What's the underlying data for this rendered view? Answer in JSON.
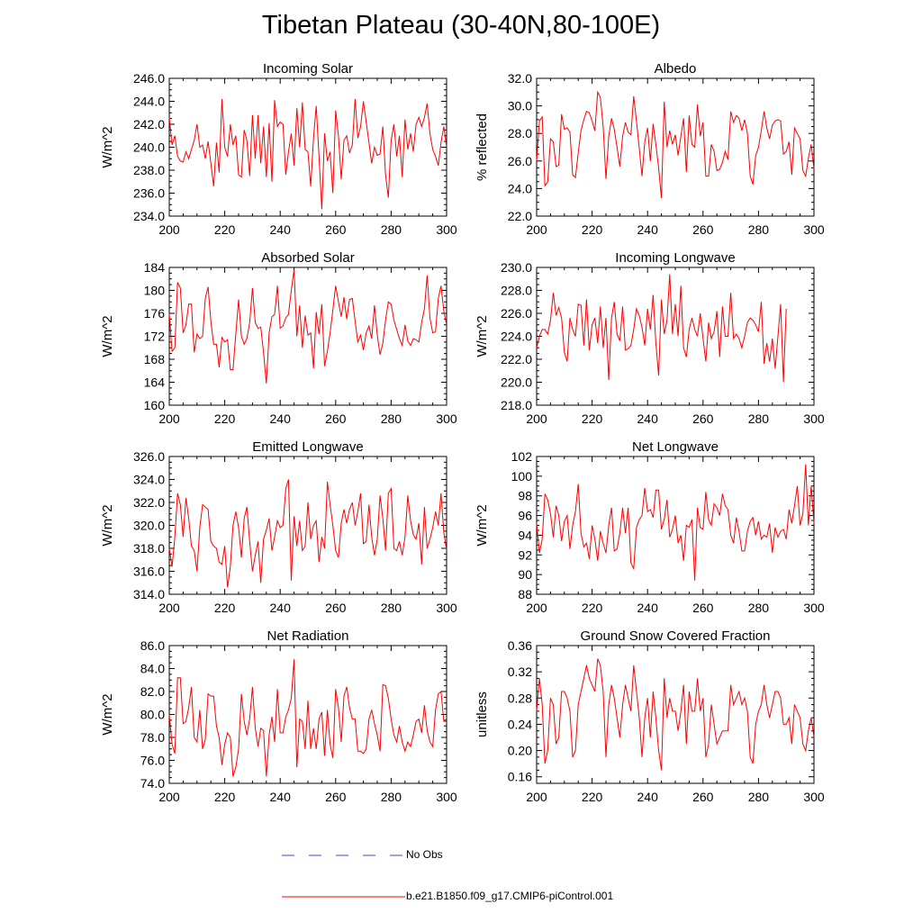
{
  "title": "Tibetan Plateau (30-40N,80-100E)",
  "colors": {
    "model": "#ff0000",
    "obs": "#3b4bc8",
    "axis": "#000000"
  },
  "legend": {
    "obs_label": "No Obs",
    "model_label": "b.e21.B1850.f09_g17.CMIP6-piControl.001"
  },
  "chart_data": [
    {
      "type": "line",
      "title": "Incoming Solar",
      "ylabel": "W/m^2",
      "xlim": [
        200,
        300
      ],
      "ylim": [
        234,
        246
      ],
      "xticks": [
        "200",
        "220",
        "240",
        "260",
        "280",
        "300"
      ],
      "yticks": [
        "234.0",
        "236.0",
        "238.0",
        "240.0",
        "242.0",
        "244.0",
        "246.0"
      ],
      "series": [
        {
          "name": "b.e21.B1850.f09_g17.CMIP6-piControl.001",
          "x_start": 200,
          "values": [
            242.6,
            240.2,
            241.0,
            239.2,
            238.8,
            238.7,
            239.6,
            239.0,
            239.8,
            240.6,
            242.0,
            240.0,
            240.2,
            239.0,
            240.5,
            238.6,
            236.6,
            240.4,
            237.8,
            244.2,
            240.0,
            239.2,
            242.0,
            240.2,
            241.0,
            237.6,
            237.4,
            241.5,
            240.6,
            237.5,
            242.8,
            239.0,
            242.8,
            238.6,
            241.8,
            237.4,
            242.1,
            237.0,
            244.1,
            241.8,
            242.2,
            242.0,
            237.6,
            239.6,
            241.2,
            238.4,
            243.4,
            240.0,
            243.9,
            239.8,
            239.6,
            236.6,
            240.8,
            243.6,
            239.2,
            234.6,
            241.2,
            238.8,
            239.6,
            236.0,
            243.2,
            241.0,
            237.2,
            240.6,
            241.0,
            239.5,
            240.2,
            244.2,
            240.8,
            241.8,
            244.0,
            242.2,
            240.4,
            238.6,
            240.0,
            239.3,
            239.4,
            241.8,
            237.6,
            235.6,
            240.6,
            242.0,
            239.2,
            241.0,
            237.4,
            242.4,
            239.8,
            241.2,
            239.6,
            242.0,
            242.6,
            241.8,
            242.6,
            243.8,
            241.2,
            239.8,
            239.2,
            238.4,
            240.4,
            241.8,
            240.0
          ]
        }
      ]
    },
    {
      "type": "line",
      "title": "Albedo",
      "ylabel": "% reflected",
      "xlim": [
        200,
        300
      ],
      "ylim": [
        22,
        32
      ],
      "xticks": [
        "200",
        "220",
        "240",
        "260",
        "280",
        "300"
      ],
      "yticks": [
        "22.0",
        "24.0",
        "26.0",
        "28.0",
        "30.0",
        "32.0"
      ],
      "series": [
        {
          "name": "b.e21.B1850.f09_g17.CMIP6-piControl.001",
          "x_start": 200,
          "values": [
            26.0,
            28.9,
            29.2,
            24.2,
            24.5,
            27.6,
            27.4,
            25.6,
            25.7,
            29.4,
            28.3,
            28.4,
            28.1,
            25.0,
            24.8,
            26.6,
            28.2,
            29.0,
            29.6,
            29.5,
            28.9,
            28.2,
            31.0,
            30.6,
            28.5,
            24.7,
            27.8,
            29.1,
            28.3,
            27.0,
            25.6,
            27.8,
            28.8,
            28.1,
            27.9,
            30.7,
            28.9,
            26.9,
            24.9,
            27.4,
            28.4,
            26.0,
            28.7,
            27.2,
            25.5,
            23.3,
            30.3,
            27.0,
            28.2,
            27.2,
            27.9,
            26.4,
            27.8,
            29.1,
            25.2,
            29.3,
            27.2,
            27.0,
            30.1,
            27.8,
            28.8,
            24.9,
            24.9,
            27.2,
            26.7,
            25.3,
            25.4,
            25.9,
            26.7,
            26.1,
            29.6,
            28.8,
            29.3,
            29.1,
            28.2,
            29.0,
            28.0,
            24.9,
            24.3,
            26.4,
            27.0,
            28.2,
            29.6,
            28.4,
            27.6,
            28.6,
            28.9,
            29.0,
            28.9,
            26.5,
            26.7,
            27.4,
            25.0,
            28.4,
            28.0,
            27.6,
            25.3,
            24.9,
            26.2,
            27.2,
            25.4
          ]
        }
      ]
    },
    {
      "type": "line",
      "title": "Absorbed Solar",
      "ylabel": "W/m^2",
      "xlim": [
        200,
        300
      ],
      "ylim": [
        160,
        184
      ],
      "xticks": [
        "200",
        "220",
        "240",
        "260",
        "280",
        "300"
      ],
      "yticks": [
        "160",
        "164",
        "168",
        "172",
        "176",
        "180",
        "184"
      ],
      "series": [
        {
          "name": "b.e21.B1850.f09_g17.CMIP6-piControl.001",
          "x_start": 200,
          "values": [
            176.0,
            169.4,
            170.0,
            181.4,
            180.4,
            172.6,
            174.0,
            177.6,
            177.6,
            169.2,
            172.4,
            171.6,
            172.0,
            178.6,
            180.6,
            174.6,
            170.6,
            170.6,
            166.6,
            171.8,
            171.0,
            171.4,
            166.2,
            166.2,
            172.4,
            178.4,
            172.0,
            170.6,
            171.6,
            174.4,
            180.4,
            174.4,
            173.4,
            173.6,
            169.2,
            163.8,
            172.6,
            175.4,
            175.8,
            180.8,
            173.4,
            173.8,
            175.2,
            175.8,
            180.0,
            183.6,
            172.0,
            177.4,
            170.0,
            175.6,
            172.2,
            172.6,
            166.4,
            176.2,
            172.4,
            177.6,
            166.8,
            169.4,
            172.6,
            176.6,
            180.8,
            178.0,
            175.4,
            178.8,
            175.0,
            178.4,
            178.6,
            174.6,
            171.0,
            172.2,
            169.6,
            172.6,
            173.8,
            171.6,
            177.4,
            172.2,
            168.8,
            170.8,
            174.8,
            178.0,
            177.6,
            174.8,
            173.2,
            171.6,
            170.4,
            174.0,
            171.2,
            170.4,
            171.6,
            171.4,
            171.0,
            174.4,
            176.8,
            182.6,
            175.2,
            172.6,
            172.8,
            178.6,
            180.8,
            176.4,
            174.0
          ]
        }
      ]
    },
    {
      "type": "line",
      "title": "Incoming Longwave",
      "ylabel": "W/m^2",
      "xlim": [
        200,
        300
      ],
      "ylim": [
        218,
        230
      ],
      "xticks": [
        "200",
        "220",
        "240",
        "260",
        "280",
        "300"
      ],
      "yticks": [
        "218.0",
        "220.0",
        "222.0",
        "224.0",
        "226.0",
        "228.0",
        "230.0"
      ],
      "series": [
        {
          "name": "b.e21.B1850.f09_g17.CMIP6-piControl.001",
          "x_start": 200,
          "values": [
            223.0,
            224.0,
            224.6,
            224.6,
            224.2,
            225.4,
            227.8,
            225.8,
            226.5,
            225.6,
            222.6,
            221.8,
            225.6,
            224.6,
            224.0,
            226.8,
            226.7,
            223.2,
            227.2,
            222.8,
            225.0,
            225.6,
            223.4,
            226.6,
            223.0,
            225.6,
            220.2,
            225.6,
            227.0,
            224.2,
            223.6,
            226.6,
            222.8,
            222.9,
            223.2,
            224.6,
            226.4,
            225.8,
            224.8,
            223.2,
            226.4,
            224.6,
            227.6,
            223.4,
            220.6,
            227.2,
            224.2,
            225.4,
            229.4,
            224.2,
            226.8,
            224.0,
            228.4,
            223.0,
            222.2,
            224.6,
            225.6,
            224.6,
            224.0,
            226.0,
            223.8,
            221.8,
            225.2,
            223.8,
            224.4,
            226.2,
            222.2,
            226.6,
            224.0,
            224.0,
            227.8,
            223.8,
            224.2,
            223.8,
            223.0,
            224.0,
            225.2,
            225.6,
            225.4,
            225.0,
            224.4,
            227.0,
            221.6,
            223.4,
            221.8,
            223.8,
            221.2,
            224.0,
            226.8,
            220.0,
            226.4
          ]
        }
      ]
    },
    {
      "type": "line",
      "title": "Emitted Longwave",
      "ylabel": "W/m^2",
      "xlim": [
        200,
        300
      ],
      "ylim": [
        314,
        326
      ],
      "xticks": [
        "200",
        "220",
        "240",
        "260",
        "280",
        "300"
      ],
      "yticks": [
        "314.0",
        "316.0",
        "318.0",
        "320.0",
        "322.0",
        "324.0",
        "326.0"
      ],
      "series": [
        {
          "name": "b.e21.B1850.f09_g17.CMIP6-piControl.001",
          "x_start": 200,
          "values": [
            318.0,
            316.4,
            319.0,
            322.8,
            321.8,
            319.0,
            322.4,
            320.6,
            318.2,
            317.8,
            316.0,
            319.8,
            321.8,
            321.6,
            321.4,
            318.6,
            318.2,
            318.0,
            316.8,
            316.6,
            318.2,
            314.6,
            316.4,
            320.0,
            321.2,
            319.8,
            317.2,
            320.6,
            321.6,
            318.6,
            316.0,
            317.4,
            318.6,
            315.0,
            318.8,
            319.6,
            320.6,
            317.8,
            319.0,
            320.4,
            319.8,
            320.0,
            323.2,
            324.0,
            315.2,
            320.8,
            318.2,
            320.4,
            317.8,
            318.2,
            322.0,
            318.8,
            320.0,
            320.4,
            316.8,
            319.0,
            318.0,
            323.8,
            321.8,
            320.0,
            317.8,
            317.2,
            320.2,
            321.4,
            320.2,
            321.4,
            322.0,
            320.0,
            321.2,
            322.8,
            318.4,
            318.6,
            321.8,
            319.0,
            317.4,
            318.8,
            322.6,
            320.6,
            317.8,
            322.8,
            323.2,
            318.0,
            317.8,
            318.6,
            317.4,
            319.0,
            322.6,
            320.4,
            319.2,
            318.8,
            320.2,
            316.6,
            321.6,
            318.0,
            318.8,
            319.8,
            321.2,
            320.0,
            322.8,
            319.4,
            317.8
          ]
        }
      ]
    },
    {
      "type": "line",
      "title": "Net Longwave",
      "ylabel": "W/m^2",
      "xlim": [
        200,
        300
      ],
      "ylim": [
        88,
        102
      ],
      "xticks": [
        "200",
        "220",
        "240",
        "260",
        "280",
        "300"
      ],
      "yticks": [
        "88",
        "90",
        "92",
        "94",
        "96",
        "98",
        "100",
        "102"
      ],
      "series": [
        {
          "name": "b.e21.B1850.f09_g17.CMIP6-piControl.001",
          "x_start": 200,
          "values": [
            95.2,
            92.2,
            93.6,
            98.2,
            97.6,
            96.2,
            93.8,
            97.0,
            96.0,
            93.4,
            95.4,
            96.0,
            92.6,
            95.0,
            96.4,
            99.2,
            94.2,
            92.8,
            93.2,
            91.6,
            95.0,
            93.6,
            91.4,
            94.4,
            93.2,
            92.2,
            95.0,
            96.8,
            92.4,
            92.6,
            94.2,
            96.8,
            94.2,
            96.8,
            91.2,
            90.6,
            94.8,
            95.6,
            96.0,
            98.8,
            96.4,
            96.6,
            95.8,
            98.6,
            98.6,
            94.6,
            95.6,
            97.6,
            93.8,
            94.6,
            96.0,
            93.2,
            94.0,
            91.4,
            95.0,
            94.8,
            95.6,
            89.4,
            96.8,
            94.8,
            94.6,
            98.4,
            95.6,
            95.0,
            97.2,
            96.8,
            96.0,
            98.2,
            97.0,
            96.6,
            94.0,
            93.2,
            95.8,
            94.4,
            92.4,
            92.4,
            94.4,
            95.4,
            95.8,
            94.0,
            95.4,
            93.6,
            94.0,
            93.8,
            95.2,
            92.2,
            94.8,
            93.8,
            94.4,
            94.6,
            93.6,
            96.6,
            95.2,
            97.0,
            99.0,
            95.0,
            96.2,
            101.2,
            95.0,
            99.0,
            95.2
          ]
        }
      ]
    },
    {
      "type": "line",
      "title": "Net Radiation",
      "ylabel": "W/m^2",
      "xlim": [
        200,
        300
      ],
      "ylim": [
        74,
        86
      ],
      "xticks": [
        "200",
        "220",
        "240",
        "260",
        "280",
        "300"
      ],
      "yticks": [
        "74.0",
        "76.0",
        "78.0",
        "80.0",
        "82.0",
        "84.0",
        "86.0"
      ],
      "series": [
        {
          "name": "b.e21.B1850.f09_g17.CMIP6-piControl.001",
          "x_start": 200,
          "values": [
            80.0,
            77.4,
            76.6,
            83.2,
            83.2,
            79.2,
            79.4,
            80.6,
            82.4,
            78.0,
            77.6,
            80.4,
            77.0,
            77.8,
            81.8,
            81.6,
            81.6,
            79.0,
            78.0,
            75.6,
            77.4,
            78.4,
            78.0,
            74.6,
            75.4,
            77.0,
            81.8,
            79.4,
            78.2,
            79.6,
            82.4,
            78.8,
            77.2,
            78.8,
            78.6,
            74.6,
            78.2,
            79.8,
            77.6,
            82.2,
            78.4,
            78.4,
            79.8,
            80.4,
            81.4,
            84.8,
            75.4,
            79.6,
            79.4,
            77.0,
            81.2,
            77.0,
            78.8,
            77.0,
            79.6,
            80.2,
            76.4,
            80.4,
            77.4,
            76.2,
            82.2,
            80.6,
            77.6,
            81.6,
            82.4,
            80.6,
            79.6,
            79.6,
            76.8,
            76.8,
            76.6,
            77.0,
            79.6,
            80.4,
            79.2,
            78.2,
            76.8,
            82.6,
            82.5,
            81.4,
            79.6,
            78.2,
            77.6,
            79.0,
            77.6,
            76.8,
            77.6,
            77.2,
            78.2,
            79.4,
            79.6,
            78.4,
            80.8,
            78.6,
            77.6,
            77.2,
            80.4,
            81.8,
            82.0,
            79.4,
            79.4
          ]
        }
      ]
    },
    {
      "type": "line",
      "title": "Ground Snow Covered Fraction",
      "ylabel": "unitless",
      "xlim": [
        200,
        300
      ],
      "ylim": [
        0.15,
        0.36
      ],
      "xticks": [
        "200",
        "220",
        "240",
        "260",
        "280",
        "300"
      ],
      "yticks": [
        "0.16",
        "0.20",
        "0.24",
        "0.28",
        "0.32",
        "0.36"
      ],
      "series": [
        {
          "name": "b.e21.B1850.f09_g17.CMIP6-piControl.001",
          "x_start": 200,
          "values": [
            0.26,
            0.31,
            0.27,
            0.18,
            0.2,
            0.28,
            0.27,
            0.21,
            0.22,
            0.29,
            0.29,
            0.28,
            0.26,
            0.19,
            0.2,
            0.27,
            0.29,
            0.31,
            0.33,
            0.31,
            0.3,
            0.29,
            0.34,
            0.33,
            0.29,
            0.19,
            0.27,
            0.3,
            0.28,
            0.25,
            0.22,
            0.27,
            0.3,
            0.28,
            0.26,
            0.33,
            0.29,
            0.25,
            0.19,
            0.25,
            0.28,
            0.22,
            0.29,
            0.25,
            0.2,
            0.17,
            0.31,
            0.25,
            0.28,
            0.26,
            0.26,
            0.23,
            0.26,
            0.3,
            0.21,
            0.29,
            0.26,
            0.26,
            0.31,
            0.26,
            0.28,
            0.19,
            0.21,
            0.27,
            0.24,
            0.21,
            0.22,
            0.23,
            0.23,
            0.23,
            0.3,
            0.27,
            0.28,
            0.29,
            0.27,
            0.28,
            0.26,
            0.19,
            0.18,
            0.24,
            0.26,
            0.27,
            0.3,
            0.27,
            0.25,
            0.27,
            0.29,
            0.29,
            0.28,
            0.24,
            0.24,
            0.25,
            0.21,
            0.27,
            0.26,
            0.25,
            0.21,
            0.2,
            0.23,
            0.25,
            0.22
          ]
        }
      ]
    }
  ]
}
